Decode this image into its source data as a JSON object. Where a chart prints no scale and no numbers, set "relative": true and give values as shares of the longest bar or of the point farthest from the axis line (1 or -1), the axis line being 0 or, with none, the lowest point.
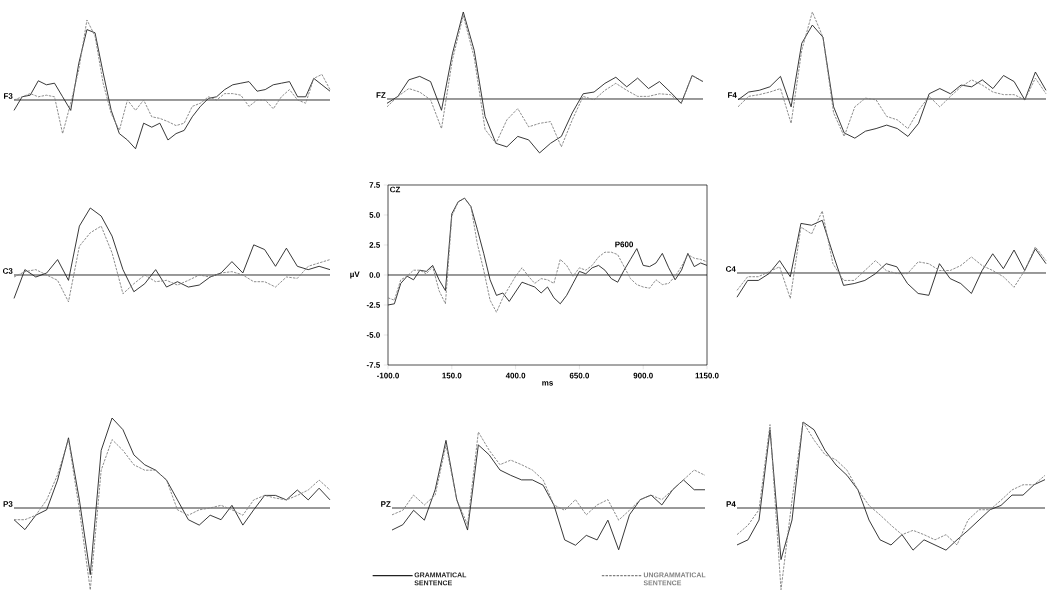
{
  "chart_data": [
    {
      "type": "line",
      "title": "F3",
      "relative": true,
      "categories": [
        null,
        null,
        null,
        null,
        null,
        null,
        null,
        null,
        null,
        null,
        null,
        null,
        null,
        null,
        null,
        null,
        null,
        null,
        null,
        null,
        null,
        null,
        null,
        null,
        null,
        null,
        null,
        null,
        null,
        null,
        null,
        null,
        null,
        null,
        null,
        null,
        null,
        null,
        null,
        null
      ],
      "series": [
        {
          "color": "#222222",
          "line_style": "solid",
          "values": [
            -0.13,
            0.04,
            0.06,
            0.24,
            0.19,
            0.21,
            0.04,
            -0.13,
            0.46,
            0.88,
            0.84,
            0.34,
            -0.13,
            -0.42,
            -0.5,
            -0.61,
            -0.29,
            -0.34,
            -0.29,
            -0.5,
            -0.42,
            -0.38,
            -0.21,
            -0.08,
            0.02,
            0.04,
            0.13,
            0.19,
            0.21,
            0.23,
            0.11,
            0.13,
            0.19,
            0.21,
            0.23,
            0.04,
            0.04,
            0.27,
            0.19,
            0.11
          ]
        },
        {
          "color": "#808080",
          "line_style": "dashed",
          "values": [
            0,
            0.04,
            0.08,
            0.04,
            0.06,
            0.04,
            -0.42,
            -0.04,
            0.38,
            1.0,
            0.8,
            0.21,
            -0.17,
            -0.38,
            0,
            -0.13,
            0,
            -0.21,
            -0.23,
            -0.27,
            -0.32,
            -0.29,
            -0.08,
            -0.04,
            0.04,
            0,
            0.08,
            0.08,
            0.06,
            -0.08,
            0,
            0,
            -0.11,
            0.04,
            0.13,
            0,
            -0.04,
            0.27,
            0.32,
            0.13
          ]
        }
      ]
    },
    {
      "type": "line",
      "title": "FZ",
      "relative": true,
      "categories": [
        null,
        null,
        null,
        null,
        null,
        null,
        null,
        null,
        null,
        null,
        null,
        null,
        null,
        null,
        null,
        null,
        null,
        null,
        null,
        null,
        null,
        null,
        null,
        null,
        null,
        null,
        null,
        null,
        null,
        null
      ],
      "series": [
        {
          "color": "#222222",
          "line_style": "solid",
          "values": [
            -0.05,
            0.03,
            0.22,
            0.26,
            0.2,
            -0.13,
            0.52,
            1.0,
            0.56,
            -0.2,
            -0.51,
            -0.55,
            -0.43,
            -0.47,
            -0.62,
            -0.51,
            -0.43,
            -0.16,
            0.06,
            0.08,
            0.18,
            0.25,
            0.14,
            0.24,
            0.12,
            0.2,
            0.08,
            -0.05,
            0.27,
            0.2
          ]
        },
        {
          "color": "#808080",
          "line_style": "dashed",
          "values": [
            -0.09,
            0.03,
            0.12,
            0.08,
            -0.01,
            -0.34,
            0.45,
            0.96,
            0.48,
            -0.35,
            -0.51,
            -0.24,
            -0.11,
            -0.32,
            -0.28,
            -0.26,
            -0.55,
            -0.24,
            0.03,
            -0.01,
            0.1,
            0.18,
            0.1,
            0.03,
            0.03,
            0.06,
            0.05,
            -0.05,
            0.27,
            0.2
          ]
        }
      ]
    },
    {
      "type": "line",
      "title": "F4",
      "relative": true,
      "categories": [
        null,
        null,
        null,
        null,
        null,
        null,
        null,
        null,
        null,
        null,
        null,
        null,
        null,
        null,
        null,
        null,
        null,
        null,
        null,
        null,
        null,
        null,
        null,
        null,
        null,
        null,
        null,
        null,
        null,
        null
      ],
      "series": [
        {
          "color": "#222222",
          "line_style": "solid",
          "values": [
            -0.01,
            0.08,
            0.1,
            0.14,
            0.26,
            -0.09,
            0.64,
            0.85,
            0.71,
            -0.09,
            -0.39,
            -0.45,
            -0.37,
            -0.34,
            -0.3,
            -0.34,
            -0.43,
            -0.28,
            0.06,
            0.12,
            0.06,
            0.16,
            0.14,
            0.22,
            0.12,
            0.27,
            0.2,
            -0.01,
            0.31,
            0.1
          ]
        },
        {
          "color": "#808080",
          "line_style": "dashed",
          "values": [
            -0.09,
            0.03,
            0.05,
            0.08,
            0.12,
            -0.28,
            0.56,
            1.0,
            0.71,
            -0.16,
            -0.43,
            -0.09,
            0.01,
            -0.01,
            -0.2,
            -0.24,
            -0.34,
            -0.13,
            0.03,
            -0.09,
            0.03,
            0.14,
            0.22,
            0.16,
            0.08,
            0.05,
            0.05,
            -0.01,
            0.24,
            0.06
          ]
        }
      ]
    },
    {
      "type": "line",
      "title": "C3",
      "relative": true,
      "categories": [
        null,
        null,
        null,
        null,
        null,
        null,
        null,
        null,
        null,
        null,
        null,
        null,
        null,
        null,
        null,
        null,
        null,
        null,
        null,
        null,
        null,
        null,
        null,
        null,
        null,
        null,
        null,
        null,
        null,
        null
      ],
      "series": [
        {
          "color": "#222222",
          "line_style": "solid",
          "values": [
            -0.35,
            0.08,
            -0.03,
            0.03,
            0.23,
            -0.08,
            0.73,
            1.0,
            0.88,
            0.58,
            0.08,
            -0.25,
            -0.13,
            0.08,
            -0.18,
            -0.1,
            -0.18,
            -0.15,
            -0.03,
            0.03,
            0.2,
            0.03,
            0.45,
            0.38,
            0.13,
            0.4,
            0.13,
            0.08,
            0.13,
            0.08
          ]
        },
        {
          "color": "#808080",
          "line_style": "dashed",
          "values": [
            -0.03,
            0.05,
            0.08,
            0,
            -0.08,
            -0.4,
            0.43,
            0.63,
            0.73,
            0.33,
            -0.28,
            -0.13,
            0,
            -0.1,
            -0.08,
            -0.15,
            -0.08,
            0,
            -0.03,
            0.03,
            0.05,
            0,
            -0.1,
            -0.1,
            -0.18,
            -0.03,
            -0.05,
            0.13,
            0.18,
            0.23
          ]
        }
      ]
    },
    {
      "type": "line",
      "title": "CZ",
      "xlabel": "ms",
      "ylabel": "µV",
      "x": [
        -100,
        -75,
        -50,
        -25,
        0,
        25,
        50,
        75,
        100,
        125,
        150,
        175,
        200,
        225,
        250,
        275,
        300,
        325,
        350,
        375,
        400,
        425,
        450,
        475,
        500,
        525,
        550,
        575,
        600,
        625,
        650,
        675,
        700,
        725,
        750,
        775,
        800,
        825,
        850,
        875,
        900,
        925,
        950,
        975,
        1000,
        1025,
        1050,
        1075,
        1100,
        1125,
        1150
      ],
      "xlim": [
        -100,
        1150
      ],
      "xticks": [
        {
          "value": -100,
          "label": "-100.0"
        },
        {
          "value": 150,
          "label": "150.0"
        },
        {
          "value": 400,
          "label": "400.0"
        },
        {
          "value": 650,
          "label": "650.0"
        },
        {
          "value": 900,
          "label": "900.0"
        },
        {
          "value": 1150,
          "label": "1150.0"
        }
      ],
      "ylim": [
        -7.5,
        7.5
      ],
      "yticks": [
        -7.5,
        {
          "value": -5,
          "label": "-5.0"
        },
        -2.5,
        {
          "value": 0,
          "label": "0.0"
        },
        2.5,
        {
          "value": 5,
          "label": "5.0"
        },
        7.5
      ],
      "ref_lines": [
        {
          "axis": "y",
          "value": 0
        }
      ],
      "annotations": [
        "P600"
      ],
      "legend": "bottom",
      "series": [
        {
          "name": "GRAMMATICAL SENTENCE",
          "color": "#222222",
          "line_style": "solid",
          "values": [
            -2.5,
            -2.4,
            -0.7,
            -0.1,
            -0.4,
            0.4,
            0.3,
            0.8,
            -0.4,
            -1.3,
            5.1,
            6.1,
            6.4,
            5.7,
            3.8,
            1.8,
            -0.4,
            -1.7,
            -1.5,
            -2.2,
            -1.4,
            -0.6,
            -0.8,
            -1.0,
            -1.5,
            -1.0,
            -1.9,
            -2.4,
            -1.7,
            -0.7,
            0.3,
            0.1,
            0.6,
            0.8,
            0.4,
            -0.3,
            -0.6,
            0.4,
            1.3,
            2.2,
            0.8,
            0.7,
            1.0,
            1.8,
            0.6,
            -0.4,
            0.4,
            1.8,
            0.7,
            1.0,
            0.8
          ]
        },
        {
          "name": "UNGRAMMATICAL SENTENCE",
          "color": "#808080",
          "line_style": "dashed",
          "values": [
            -1.9,
            -2.1,
            -0.4,
            -0.1,
            0.4,
            0.4,
            0.1,
            0.7,
            -1.3,
            -2.4,
            4.9,
            6.1,
            6.4,
            5.7,
            2.6,
            0.4,
            -2.1,
            -3.1,
            -1.9,
            -1.0,
            -0.1,
            0.6,
            -0.1,
            -0.7,
            -0.3,
            -0.4,
            -0.7,
            1.3,
            0.8,
            -0.1,
            0.6,
            0.4,
            0.8,
            1.5,
            1.9,
            1.9,
            1.7,
            0.7,
            -0.3,
            -0.8,
            -1.0,
            -1.1,
            -0.4,
            -0.8,
            -0.7,
            -0.1,
            0.7,
            1.7,
            1.4,
            1.3,
            1.1
          ]
        }
      ]
    },
    {
      "type": "line",
      "title": "C4",
      "relative": true,
      "categories": [
        null,
        null,
        null,
        null,
        null,
        null,
        null,
        null,
        null,
        null,
        null,
        null,
        null,
        null,
        null,
        null,
        null,
        null,
        null,
        null,
        null,
        null,
        null,
        null,
        null,
        null,
        null,
        null,
        null,
        null
      ],
      "series": [
        {
          "color": "#222222",
          "line_style": "solid",
          "values": [
            -0.39,
            -0.12,
            -0.12,
            -0.01,
            0.2,
            -0.06,
            0.8,
            0.77,
            0.85,
            0.31,
            -0.2,
            -0.17,
            -0.12,
            -0.01,
            0.15,
            0.1,
            -0.17,
            -0.33,
            -0.36,
            0.15,
            -0.09,
            -0.17,
            -0.33,
            0.04,
            0.31,
            0.07,
            0.37,
            0.04,
            0.39,
            0.15
          ]
        },
        {
          "color": "#808080",
          "line_style": "dashed",
          "values": [
            -0.28,
            -0.06,
            -0.06,
            0.02,
            0.1,
            -0.41,
            0.74,
            0.63,
            1.0,
            0.15,
            -0.12,
            -0.12,
            0.04,
            0.2,
            0.04,
            -0.01,
            -0.01,
            0.18,
            0.15,
            0.04,
            0.04,
            0.12,
            0.26,
            0.12,
            0.04,
            -0.06,
            -0.23,
            0.04,
            0.42,
            0.2
          ]
        }
      ]
    },
    {
      "type": "line",
      "title": "P3",
      "relative": true,
      "categories": [
        null,
        null,
        null,
        null,
        null,
        null,
        null,
        null,
        null,
        null,
        null,
        null,
        null,
        null,
        null,
        null,
        null,
        null,
        null,
        null,
        null,
        null,
        null,
        null,
        null,
        null,
        null,
        null,
        null,
        null
      ],
      "series": [
        {
          "color": "#222222",
          "line_style": "solid",
          "values": [
            -0.13,
            -0.24,
            -0.08,
            -0.02,
            0.31,
            0.78,
            0.09,
            -0.74,
            0.64,
            1.0,
            0.87,
            0.59,
            0.48,
            0.42,
            0.31,
            0.09,
            -0.13,
            -0.19,
            -0.08,
            -0.13,
            0.03,
            -0.19,
            -0.02,
            0.14,
            0.14,
            0.09,
            0.2,
            0.09,
            0.22,
            0.09
          ]
        },
        {
          "color": "#808080",
          "line_style": "dashed",
          "values": [
            -0.13,
            -0.13,
            -0.08,
            0.09,
            0.37,
            0.76,
            -0.02,
            -0.91,
            0.42,
            0.76,
            0.64,
            0.48,
            0.42,
            0.42,
            0.31,
            -0.02,
            -0.08,
            -0.02,
            0,
            0.03,
            -0.02,
            -0.08,
            0.09,
            0.14,
            0.11,
            0.09,
            0.14,
            0.2,
            0.31,
            0.2
          ]
        }
      ]
    },
    {
      "type": "line",
      "title": "PZ",
      "relative": true,
      "categories": [
        null,
        null,
        null,
        null,
        null,
        null,
        null,
        null,
        null,
        null,
        null,
        null,
        null,
        null,
        null,
        null,
        null,
        null,
        null,
        null,
        null,
        null,
        null,
        null,
        null,
        null,
        null,
        null,
        null,
        null
      ],
      "series": [
        {
          "color": "#222222",
          "line_style": "solid",
          "values": [
            -0.29,
            -0.22,
            -0.03,
            -0.16,
            0.24,
            0.89,
            0.11,
            -0.29,
            0.83,
            0.7,
            0.5,
            0.43,
            0.37,
            0.37,
            0.3,
            0.04,
            -0.42,
            -0.49,
            -0.36,
            -0.42,
            -0.16,
            -0.55,
            -0.09,
            0.11,
            0.17,
            0.04,
            0.24,
            0.37,
            0.24,
            0.24
          ]
        },
        {
          "color": "#808080",
          "line_style": "dashed",
          "values": [
            -0.09,
            -0.03,
            0.17,
            0.04,
            0.17,
            0.83,
            0.11,
            -0.22,
            1.0,
            0.76,
            0.57,
            0.63,
            0.57,
            0.5,
            0.37,
            0.04,
            -0.03,
            0.11,
            -0.09,
            0.04,
            0.11,
            -0.16,
            -0.03,
            0.11,
            0.17,
            0.11,
            0.24,
            0.37,
            0.5,
            0.43
          ]
        }
      ]
    },
    {
      "type": "line",
      "title": "P4",
      "relative": true,
      "categories": [
        null,
        null,
        null,
        null,
        null,
        null,
        null,
        null,
        null,
        null,
        null,
        null,
        null,
        null,
        null,
        null,
        null,
        null,
        null,
        null,
        null,
        null,
        null,
        null,
        null,
        null,
        null,
        null,
        null
      ],
      "series": [
        {
          "color": "#222222",
          "line_style": "solid",
          "values": [
            -0.43,
            -0.37,
            -0.14,
            0.91,
            -0.6,
            -0.14,
            1.0,
            0.91,
            0.67,
            0.5,
            0.38,
            0.21,
            -0.14,
            -0.37,
            -0.43,
            -0.31,
            -0.49,
            -0.37,
            -0.43,
            -0.49,
            -0.37,
            -0.26,
            -0.14,
            -0.02,
            0.03,
            0.15,
            0.15,
            0.27,
            0.33
          ]
        },
        {
          "color": "#808080",
          "line_style": "dashed",
          "values": [
            -0.31,
            -0.2,
            -0.02,
            0.97,
            -0.95,
            0.09,
            1.0,
            0.79,
            0.62,
            0.56,
            0.44,
            0.21,
            0.03,
            -0.08,
            -0.2,
            -0.31,
            -0.26,
            -0.31,
            -0.37,
            -0.31,
            -0.43,
            -0.14,
            -0.02,
            -0.02,
            0.09,
            0.21,
            0.27,
            0.27,
            0.38
          ]
        }
      ]
    }
  ]
}
